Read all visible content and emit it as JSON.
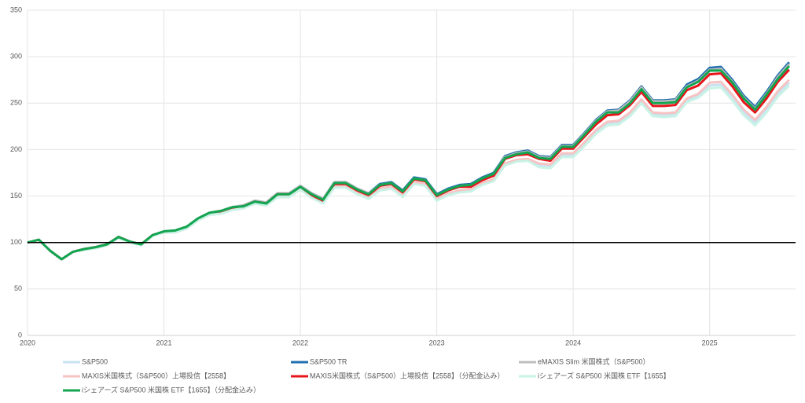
{
  "chart_data": {
    "type": "line",
    "x": [
      2020,
      2020.083,
      2020.167,
      2020.25,
      2020.333,
      2020.417,
      2020.5,
      2020.583,
      2020.667,
      2020.75,
      2020.833,
      2020.917,
      2021,
      2021.083,
      2021.167,
      2021.25,
      2021.333,
      2021.417,
      2021.5,
      2021.583,
      2021.667,
      2021.75,
      2021.833,
      2021.917,
      2022,
      2022.083,
      2022.167,
      2022.25,
      2022.333,
      2022.417,
      2022.5,
      2022.583,
      2022.667,
      2022.75,
      2022.833,
      2022.917,
      2023,
      2023.083,
      2023.167,
      2023.25,
      2023.333,
      2023.417,
      2023.5,
      2023.583,
      2023.667,
      2023.75,
      2023.833,
      2023.917,
      2024,
      2024.083,
      2024.167,
      2024.25,
      2024.333,
      2024.417,
      2024.5,
      2024.583,
      2024.667,
      2024.75,
      2024.833,
      2024.917,
      2025,
      2025.083,
      2025.167,
      2025.25,
      2025.333,
      2025.417,
      2025.5,
      2025.583
    ],
    "xlim": [
      2020,
      2025.63
    ],
    "xticks": [
      2020,
      2021,
      2022,
      2023,
      2024,
      2025
    ],
    "ylim": [
      0,
      350
    ],
    "yticks": [
      0,
      50,
      100,
      150,
      200,
      250,
      300,
      350
    ],
    "grid": true,
    "reference_line": 100,
    "legend": "bottom",
    "series": [
      {
        "name": "S&P500",
        "color": "#c9e2f2",
        "values": [
          100,
          103,
          91,
          82,
          90,
          92,
          94,
          97,
          105,
          100,
          97,
          107,
          111,
          111,
          115,
          124,
          130,
          131,
          135,
          137,
          142,
          140,
          149,
          149,
          157,
          149,
          143,
          160,
          160,
          153,
          148,
          157,
          159,
          150,
          164,
          162,
          146,
          152,
          155,
          156,
          163,
          167,
          184,
          188,
          189,
          183,
          182,
          194,
          194,
          206,
          219,
          228,
          229,
          238,
          252,
          238,
          237,
          238,
          253,
          258,
          269,
          270,
          256,
          240,
          229,
          243,
          260,
          272
        ]
      },
      {
        "name": "S&P500 TR",
        "color": "#1f6fb0",
        "values": [
          100,
          103,
          91,
          82,
          90,
          93,
          95,
          98,
          106,
          101,
          98,
          108,
          112,
          113,
          117,
          126,
          132,
          134,
          138,
          140,
          145,
          143,
          153,
          153,
          161,
          153,
          147,
          165,
          165,
          158,
          153,
          163,
          165,
          156,
          170,
          168,
          152,
          158,
          162,
          163,
          170,
          175,
          193,
          197,
          199,
          193,
          192,
          205,
          205,
          218,
          232,
          242,
          243,
          253,
          268,
          253,
          253,
          254,
          270,
          276,
          288,
          289,
          275,
          258,
          246,
          262,
          280,
          294
        ]
      },
      {
        "name": "eMAXIS Slim 米国株式（S&P500）",
        "color": "#bdbdbd",
        "values": [
          100,
          103,
          91,
          82,
          90,
          93,
          95,
          98,
          106,
          101,
          98,
          108,
          112,
          113,
          117,
          126,
          132,
          134,
          138,
          140,
          145,
          143,
          153,
          153,
          161,
          153,
          147,
          165,
          165,
          158,
          153,
          162,
          164,
          155,
          169,
          167,
          151,
          157,
          161,
          162,
          169,
          174,
          192,
          196,
          198,
          192,
          191,
          204,
          204,
          217,
          231,
          241,
          242,
          252,
          267,
          252,
          252,
          253,
          268,
          274,
          286,
          287,
          273,
          256,
          244,
          260,
          278,
          292
        ]
      },
      {
        "name": "MAXIS米国株式（S&P500）上場投信【2558】",
        "color": "#f7c3c3",
        "values": [
          100,
          103,
          91,
          82,
          90,
          92,
          94,
          97,
          105,
          100,
          97,
          107,
          111,
          111,
          115,
          124,
          130,
          131,
          135,
          137,
          142,
          140,
          149,
          149,
          157,
          150,
          144,
          161,
          161,
          154,
          149,
          158,
          160,
          151,
          165,
          163,
          147,
          153,
          156,
          157,
          164,
          168,
          185,
          189,
          190,
          185,
          184,
          196,
          196,
          208,
          221,
          230,
          231,
          240,
          254,
          240,
          239,
          240,
          255,
          260,
          272,
          273,
          259,
          243,
          232,
          246,
          263,
          275
        ]
      },
      {
        "name": "MAXIS米国株式（S&P500）上場投信【2558】（分配金込み）",
        "color": "#e8141c",
        "values": [
          100,
          103,
          91,
          82,
          90,
          93,
          95,
          98,
          106,
          101,
          98,
          108,
          111,
          112,
          116,
          125,
          131,
          133,
          137,
          139,
          144,
          142,
          152,
          152,
          159,
          151,
          145,
          163,
          163,
          156,
          151,
          161,
          163,
          154,
          168,
          166,
          150,
          156,
          160,
          160,
          167,
          172,
          190,
          194,
          195,
          190,
          188,
          201,
          201,
          214,
          227,
          237,
          238,
          248,
          262,
          247,
          247,
          248,
          264,
          269,
          281,
          282,
          268,
          251,
          240,
          255,
          273,
          286
        ]
      },
      {
        "name": "iシェアーズ S&P500 米国株 ETF【1655】",
        "color": "#c8f3e6",
        "values": [
          100,
          103,
          91,
          82,
          90,
          92,
          94,
          97,
          105,
          100,
          97,
          107,
          111,
          111,
          115,
          124,
          130,
          131,
          135,
          137,
          142,
          140,
          149,
          149,
          157,
          148,
          142,
          159,
          159,
          152,
          147,
          156,
          158,
          149,
          163,
          161,
          145,
          151,
          154,
          155,
          162,
          166,
          183,
          187,
          188,
          181,
          180,
          192,
          192,
          204,
          217,
          226,
          227,
          236,
          250,
          236,
          235,
          236,
          251,
          256,
          266,
          267,
          253,
          237,
          226,
          240,
          257,
          269
        ]
      },
      {
        "name": "iシェアーズ S&P500 米国株 ETF【1655】（分配金込み）",
        "color": "#13a550",
        "values": [
          100,
          103,
          91,
          82,
          90,
          93,
          95,
          98,
          106,
          101,
          98,
          108,
          112,
          113,
          117,
          126,
          132,
          134,
          138,
          139,
          144,
          142,
          152,
          152,
          160,
          152,
          146,
          164,
          164,
          157,
          152,
          162,
          164,
          155,
          169,
          167,
          151,
          157,
          161,
          162,
          169,
          174,
          191,
          195,
          197,
          191,
          190,
          203,
          203,
          216,
          230,
          240,
          240,
          250,
          265,
          250,
          250,
          251,
          267,
          273,
          285,
          285,
          272,
          255,
          243,
          259,
          276,
          290
        ]
      }
    ]
  }
}
